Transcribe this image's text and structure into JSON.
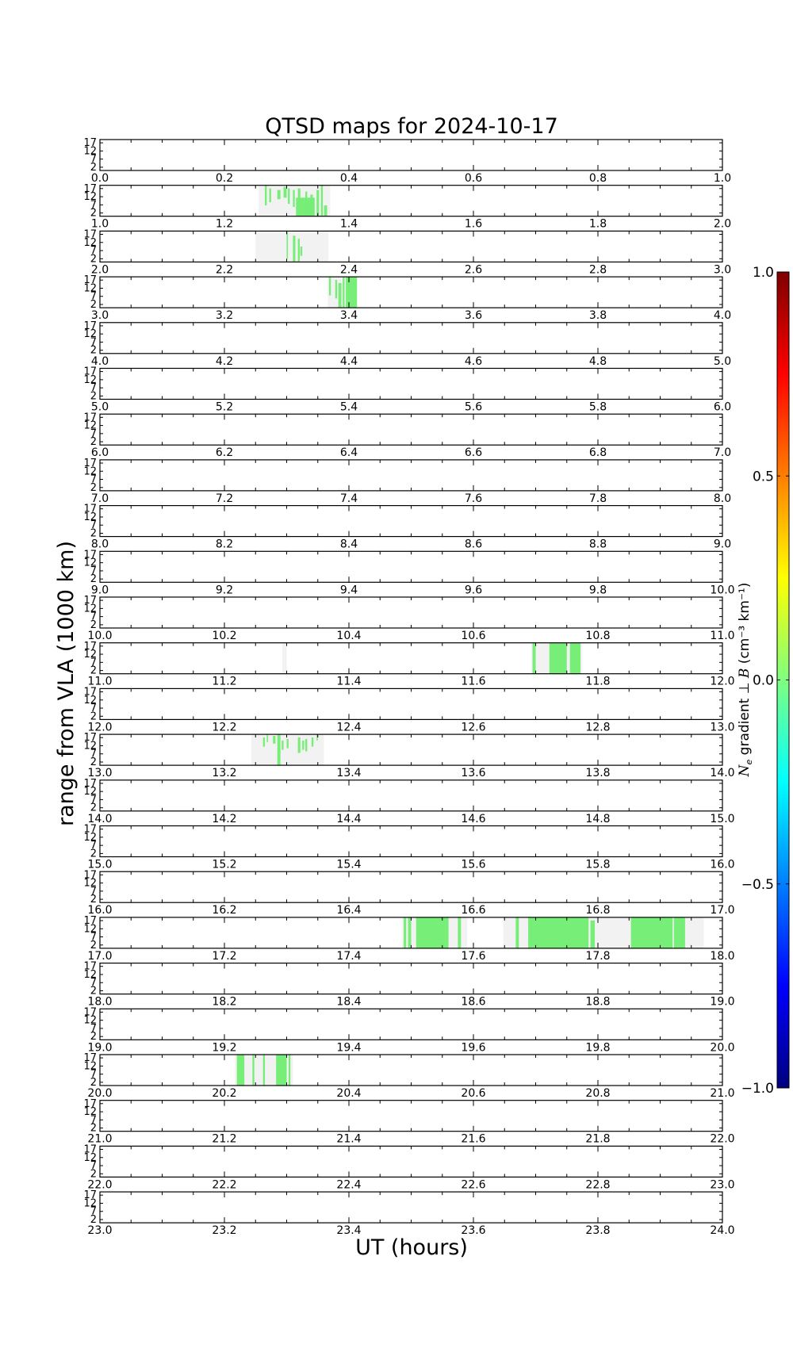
{
  "chart_data": {
    "type": "heatmap",
    "title": "QTSD maps for 2024-10-17",
    "xlabel": "UT (hours)",
    "ylabel": "range from VLA (1000 km)",
    "y_ticks": [
      "17",
      "12",
      "7",
      "2"
    ],
    "ylim": [
      0,
      19
    ],
    "colorbar": {
      "label": "N_e gradient ⊥ B (cm⁻³ km⁻¹)",
      "label_parts": {
        "ne": "N",
        "sub": "e",
        "mid": " gradient ⊥ ",
        "b": "B",
        "units": " (cm⁻³ km⁻¹)"
      },
      "range": [
        -1.0,
        1.0
      ],
      "ticks": [
        "1.0",
        "0.5",
        "0.0",
        "−0.5",
        "−1.0"
      ],
      "colors": [
        "#00007f",
        "#0000ff",
        "#007fff",
        "#00ffff",
        "#7fff7f",
        "#ffff00",
        "#ff7f00",
        "#ff0000",
        "#7f0000"
      ]
    },
    "coverage_color": "#f2f2f2",
    "value_color": "#77ee77",
    "panels": [
      {
        "start": 0.0,
        "coverage": [],
        "segments": []
      },
      {
        "start": 1.0,
        "coverage": [
          [
            1.255,
            1.37
          ]
        ],
        "segments": [
          [
            1.265,
            1.268,
            0.35,
            1.0
          ],
          [
            1.272,
            1.275,
            0.45,
            0.9
          ],
          [
            1.285,
            1.29,
            0.55,
            0.85
          ],
          [
            1.295,
            1.3,
            0.6,
            0.95
          ],
          [
            1.302,
            1.305,
            0.4,
            0.9
          ],
          [
            1.31,
            1.313,
            0.3,
            0.85
          ],
          [
            1.315,
            1.345,
            0.0,
            0.6
          ],
          [
            1.318,
            1.322,
            0.0,
            0.9
          ],
          [
            1.33,
            1.333,
            0.0,
            0.8
          ],
          [
            1.338,
            1.342,
            0.0,
            0.7
          ],
          [
            1.348,
            1.352,
            0.0,
            0.85
          ],
          [
            1.355,
            1.358,
            0.0,
            1.0
          ],
          [
            1.36,
            1.365,
            0.0,
            0.35
          ]
        ]
      },
      {
        "start": 2.0,
        "coverage": [
          [
            2.25,
            2.367
          ]
        ],
        "segments": [
          [
            2.3,
            2.302,
            0.1,
            1.0
          ],
          [
            2.31,
            2.314,
            0.0,
            0.85
          ],
          [
            2.318,
            2.321,
            0.0,
            0.75
          ],
          [
            2.322,
            2.325,
            0.2,
            0.5
          ]
        ]
      },
      {
        "start": 3.0,
        "coverage": [
          [
            3.366,
            3.413
          ]
        ],
        "segments": [
          [
            3.368,
            3.371,
            0.4,
            1.0
          ],
          [
            3.378,
            3.381,
            0.3,
            0.9
          ],
          [
            3.383,
            3.388,
            0.0,
            0.8
          ],
          [
            3.39,
            3.393,
            0.0,
            1.0
          ],
          [
            3.395,
            3.413,
            0.0,
            1.0
          ]
        ]
      },
      {
        "start": 4.0,
        "coverage": [],
        "segments": []
      },
      {
        "start": 5.0,
        "coverage": [],
        "segments": []
      },
      {
        "start": 6.0,
        "coverage": [],
        "segments": []
      },
      {
        "start": 7.0,
        "coverage": [],
        "segments": []
      },
      {
        "start": 8.0,
        "coverage": [],
        "segments": []
      },
      {
        "start": 9.0,
        "coverage": [],
        "segments": []
      },
      {
        "start": 10.0,
        "coverage": [],
        "segments": []
      },
      {
        "start": 11.0,
        "coverage": [
          [
            11.293,
            11.3
          ],
          [
            11.693,
            11.775
          ]
        ],
        "segments": [
          [
            11.695,
            11.7,
            0.0,
            1.0
          ],
          [
            11.722,
            11.75,
            0.0,
            1.0
          ],
          [
            11.755,
            11.772,
            0.0,
            1.0
          ]
        ]
      },
      {
        "start": 12.0,
        "coverage": [],
        "segments": []
      },
      {
        "start": 13.0,
        "coverage": [
          [
            13.243,
            13.36
          ]
        ],
        "segments": [
          [
            13.262,
            13.265,
            0.6,
            0.9
          ],
          [
            13.268,
            13.27,
            0.75,
            1.0
          ],
          [
            13.278,
            13.282,
            0.7,
            0.95
          ],
          [
            13.285,
            13.29,
            0.0,
            1.0
          ],
          [
            13.292,
            13.295,
            0.5,
            0.8
          ],
          [
            13.3,
            13.303,
            0.55,
            0.85
          ],
          [
            13.318,
            13.322,
            0.4,
            0.9
          ],
          [
            13.325,
            13.328,
            0.5,
            0.8
          ],
          [
            13.33,
            13.333,
            0.45,
            0.85
          ],
          [
            13.34,
            13.343,
            0.6,
            0.9
          ],
          [
            13.348,
            13.35,
            0.8,
            1.0
          ]
        ]
      },
      {
        "start": 14.0,
        "coverage": [],
        "segments": []
      },
      {
        "start": 15.0,
        "coverage": [],
        "segments": []
      },
      {
        "start": 16.0,
        "coverage": [],
        "segments": []
      },
      {
        "start": 17.0,
        "coverage": [
          [
            17.485,
            17.59
          ],
          [
            17.648,
            17.97
          ]
        ],
        "segments": [
          [
            17.488,
            17.492,
            0.0,
            1.0
          ],
          [
            17.495,
            17.5,
            0.0,
            1.0
          ],
          [
            17.508,
            17.56,
            0.0,
            1.0
          ],
          [
            17.575,
            17.58,
            0.0,
            1.0
          ],
          [
            17.668,
            17.673,
            0.0,
            1.0
          ],
          [
            17.688,
            17.785,
            0.0,
            1.0
          ],
          [
            17.788,
            17.795,
            0.0,
            0.9
          ],
          [
            17.853,
            17.92,
            0.0,
            1.0
          ],
          [
            17.922,
            17.94,
            0.0,
            1.0
          ]
        ]
      },
      {
        "start": 18.0,
        "coverage": [],
        "segments": []
      },
      {
        "start": 19.0,
        "coverage": [],
        "segments": []
      },
      {
        "start": 20.0,
        "coverage": [
          [
            20.217,
            20.31
          ]
        ],
        "segments": [
          [
            20.22,
            20.232,
            0.0,
            1.0
          ],
          [
            20.245,
            20.248,
            0.0,
            1.0
          ],
          [
            20.262,
            20.265,
            0.0,
            1.0
          ],
          [
            20.283,
            20.3,
            0.0,
            1.0
          ],
          [
            20.303,
            20.306,
            0.0,
            1.0
          ]
        ]
      },
      {
        "start": 21.0,
        "coverage": [],
        "segments": []
      },
      {
        "start": 22.0,
        "coverage": [],
        "segments": []
      },
      {
        "start": 23.0,
        "coverage": [],
        "segments": []
      }
    ]
  }
}
